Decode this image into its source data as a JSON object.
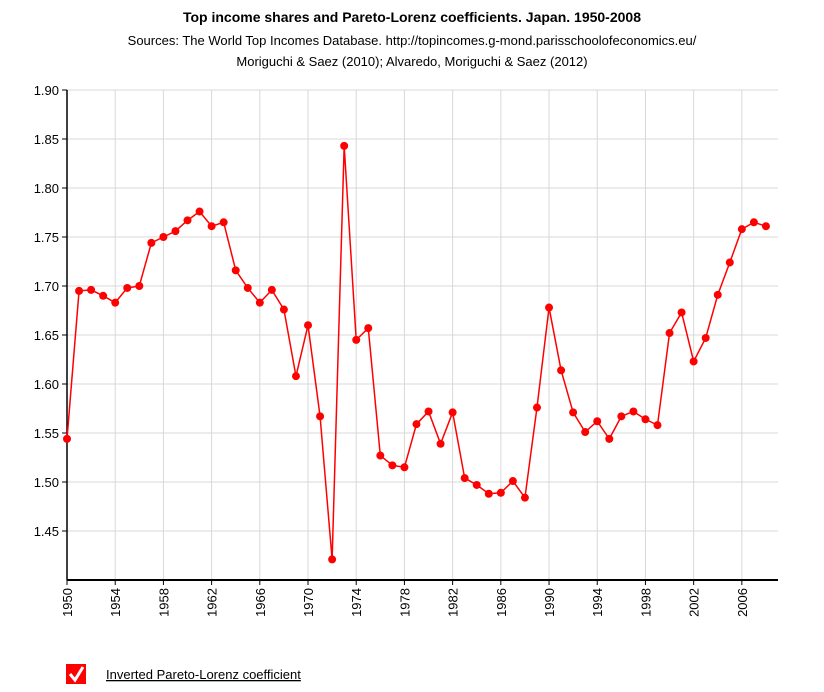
{
  "chart_data": {
    "type": "line",
    "title": "Top income shares and Pareto-Lorenz coefficients. Japan. 1950-2008",
    "subtitle": [
      "Sources: The World Top Incomes Database. http://topincomes.g-mond.parisschoolofeconomics.eu/",
      "Moriguchi & Saez (2010); Alvaredo, Moriguchi & Saez (2012)"
    ],
    "x": [
      1950,
      1951,
      1952,
      1953,
      1954,
      1955,
      1956,
      1957,
      1958,
      1959,
      1960,
      1961,
      1962,
      1963,
      1964,
      1965,
      1966,
      1967,
      1968,
      1969,
      1970,
      1971,
      1972,
      1973,
      1974,
      1975,
      1976,
      1977,
      1978,
      1979,
      1980,
      1981,
      1982,
      1983,
      1984,
      1985,
      1986,
      1987,
      1988,
      1989,
      1990,
      1991,
      1992,
      1993,
      1994,
      1995,
      1996,
      1997,
      1998,
      1999,
      2000,
      2001,
      2002,
      2003,
      2004,
      2005,
      2006,
      2007,
      2008
    ],
    "series": [
      {
        "name": "Inverted Pareto-Lorenz coefficient",
        "color": "#ff0000",
        "values": [
          1.544,
          1.695,
          1.696,
          1.69,
          1.683,
          1.698,
          1.7,
          1.744,
          1.75,
          1.756,
          1.767,
          1.776,
          1.761,
          1.765,
          1.716,
          1.698,
          1.683,
          1.696,
          1.676,
          1.608,
          1.66,
          1.567,
          1.421,
          1.843,
          1.645,
          1.657,
          1.527,
          1.517,
          1.515,
          1.559,
          1.572,
          1.539,
          1.571,
          1.504,
          1.497,
          1.488,
          1.489,
          1.501,
          1.484,
          1.576,
          1.678,
          1.614,
          1.571,
          1.551,
          1.562,
          1.544,
          1.567,
          1.572,
          1.564,
          1.558,
          1.652,
          1.673,
          1.623,
          1.647,
          1.691,
          1.724,
          1.758,
          1.765,
          1.761
        ]
      }
    ],
    "xlim": [
      1950,
      2009
    ],
    "xticks": [
      1950,
      1954,
      1958,
      1962,
      1966,
      1970,
      1974,
      1978,
      1982,
      1986,
      1990,
      1994,
      1998,
      2002,
      2006
    ],
    "ylim": [
      1.4,
      1.9
    ],
    "yticks": [
      1.45,
      {
        "value": 1.5,
        "label": "1.50"
      },
      1.55,
      {
        "value": 1.6,
        "label": "1.60"
      },
      1.65,
      {
        "value": 1.7,
        "label": "1.70"
      },
      1.75,
      {
        "value": 1.8,
        "label": "1.80"
      },
      1.85,
      {
        "value": 1.9,
        "label": "1.90"
      }
    ],
    "grid": true
  }
}
